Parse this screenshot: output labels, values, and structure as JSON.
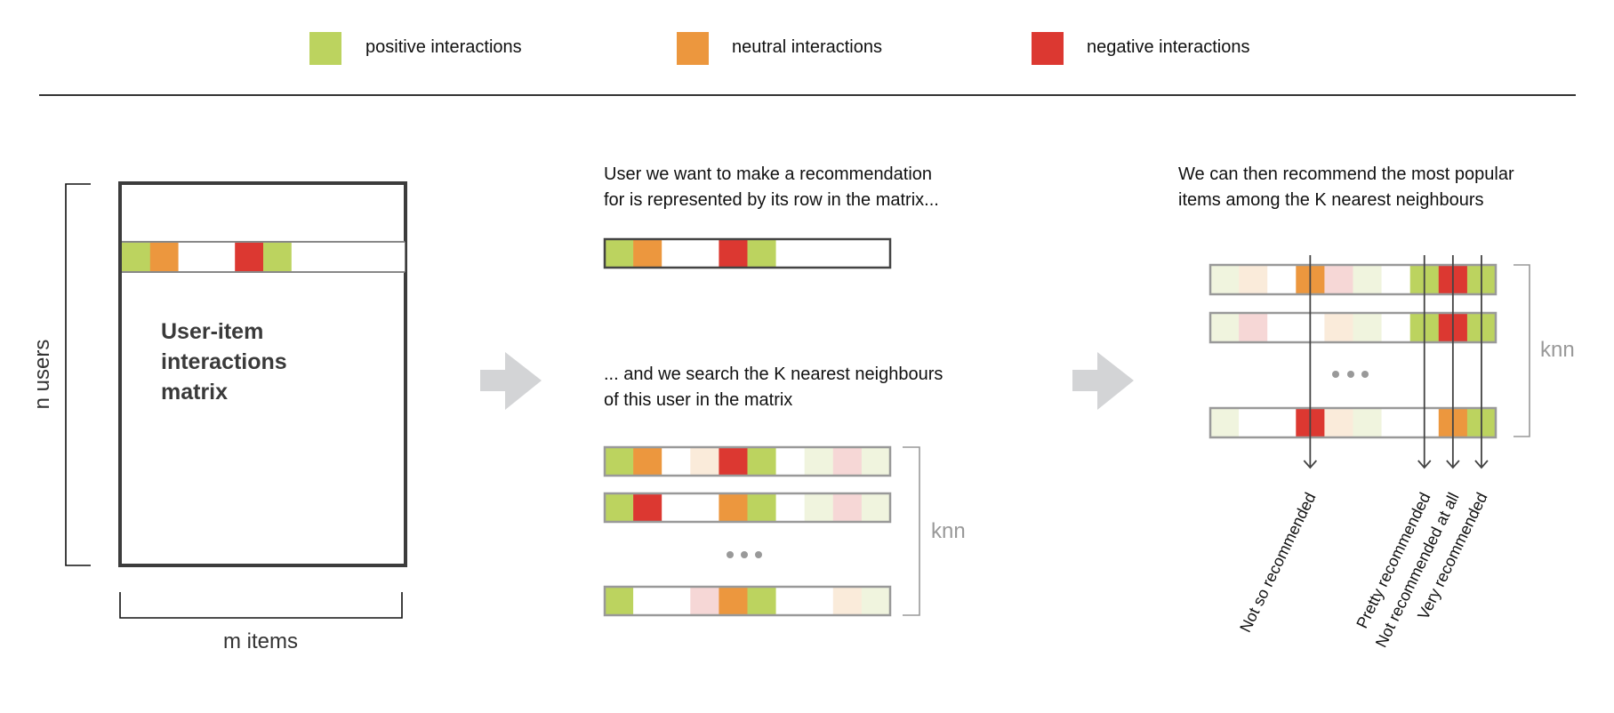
{
  "colors": {
    "positive": "#bcd35f",
    "neutral": "#ec973e",
    "negative": "#dc3831",
    "light_positive": "#f0f4de",
    "light_neutral": "#faebda",
    "light_negative": "#f6d7d6",
    "empty": "#ffffff",
    "arrow": "#d3d4d6"
  },
  "legend": [
    {
      "label": "positive interactions",
      "color": "positive"
    },
    {
      "label": "neutral interactions",
      "color": "neutral"
    },
    {
      "label": "negative interactions",
      "color": "negative"
    }
  ],
  "left_panel": {
    "matrix_title_lines": [
      "User-item",
      "interactions",
      "matrix"
    ],
    "rows_label": "n users",
    "columns_label": "m items",
    "highlighted_row": [
      "positive",
      "neutral",
      "empty",
      "empty",
      "negative",
      "positive",
      "empty",
      "empty",
      "empty",
      "empty"
    ]
  },
  "middle_panel": {
    "caption_top": [
      "User we want to make a recommendation",
      "for is represented by its row in the matrix..."
    ],
    "user_row": [
      "positive",
      "neutral",
      "empty",
      "empty",
      "negative",
      "positive",
      "empty",
      "empty",
      "empty",
      "empty"
    ],
    "caption_bottom": [
      "... and we search the K nearest neighbours",
      "of this user in the matrix"
    ],
    "neighbour_rows": [
      [
        "positive",
        "neutral",
        "empty",
        "light_neutral",
        "negative",
        "positive",
        "empty",
        "light_positive",
        "light_negative",
        "light_positive"
      ],
      [
        "positive",
        "negative",
        "empty",
        "empty",
        "neutral",
        "positive",
        "empty",
        "light_positive",
        "light_negative",
        "light_positive"
      ],
      [
        "positive",
        "empty",
        "empty",
        "light_negative",
        "neutral",
        "positive",
        "empty",
        "empty",
        "light_neutral",
        "light_positive"
      ]
    ],
    "knn_label": "knn"
  },
  "right_panel": {
    "caption": [
      "We can then recommend the most popular",
      "items among the K nearest neighbours"
    ],
    "neighbour_rows": [
      [
        "light_positive",
        "light_neutral",
        "empty",
        "neutral",
        "light_negative",
        "light_positive",
        "empty",
        "positive",
        "negative",
        "positive"
      ],
      [
        "light_positive",
        "light_negative",
        "empty",
        "empty",
        "light_neutral",
        "light_positive",
        "empty",
        "positive",
        "negative",
        "positive"
      ],
      [
        "light_positive",
        "empty",
        "empty",
        "negative",
        "light_neutral",
        "light_positive",
        "empty",
        "empty",
        "neutral",
        "positive"
      ]
    ],
    "knn_label": "knn",
    "item_outcomes": [
      {
        "column": 3,
        "label": "Not so recommended"
      },
      {
        "column": 7,
        "label": "Pretty recommended"
      },
      {
        "column": 8,
        "label": "Not recommended at all"
      },
      {
        "column": 9,
        "label": "Very recommended"
      }
    ]
  }
}
